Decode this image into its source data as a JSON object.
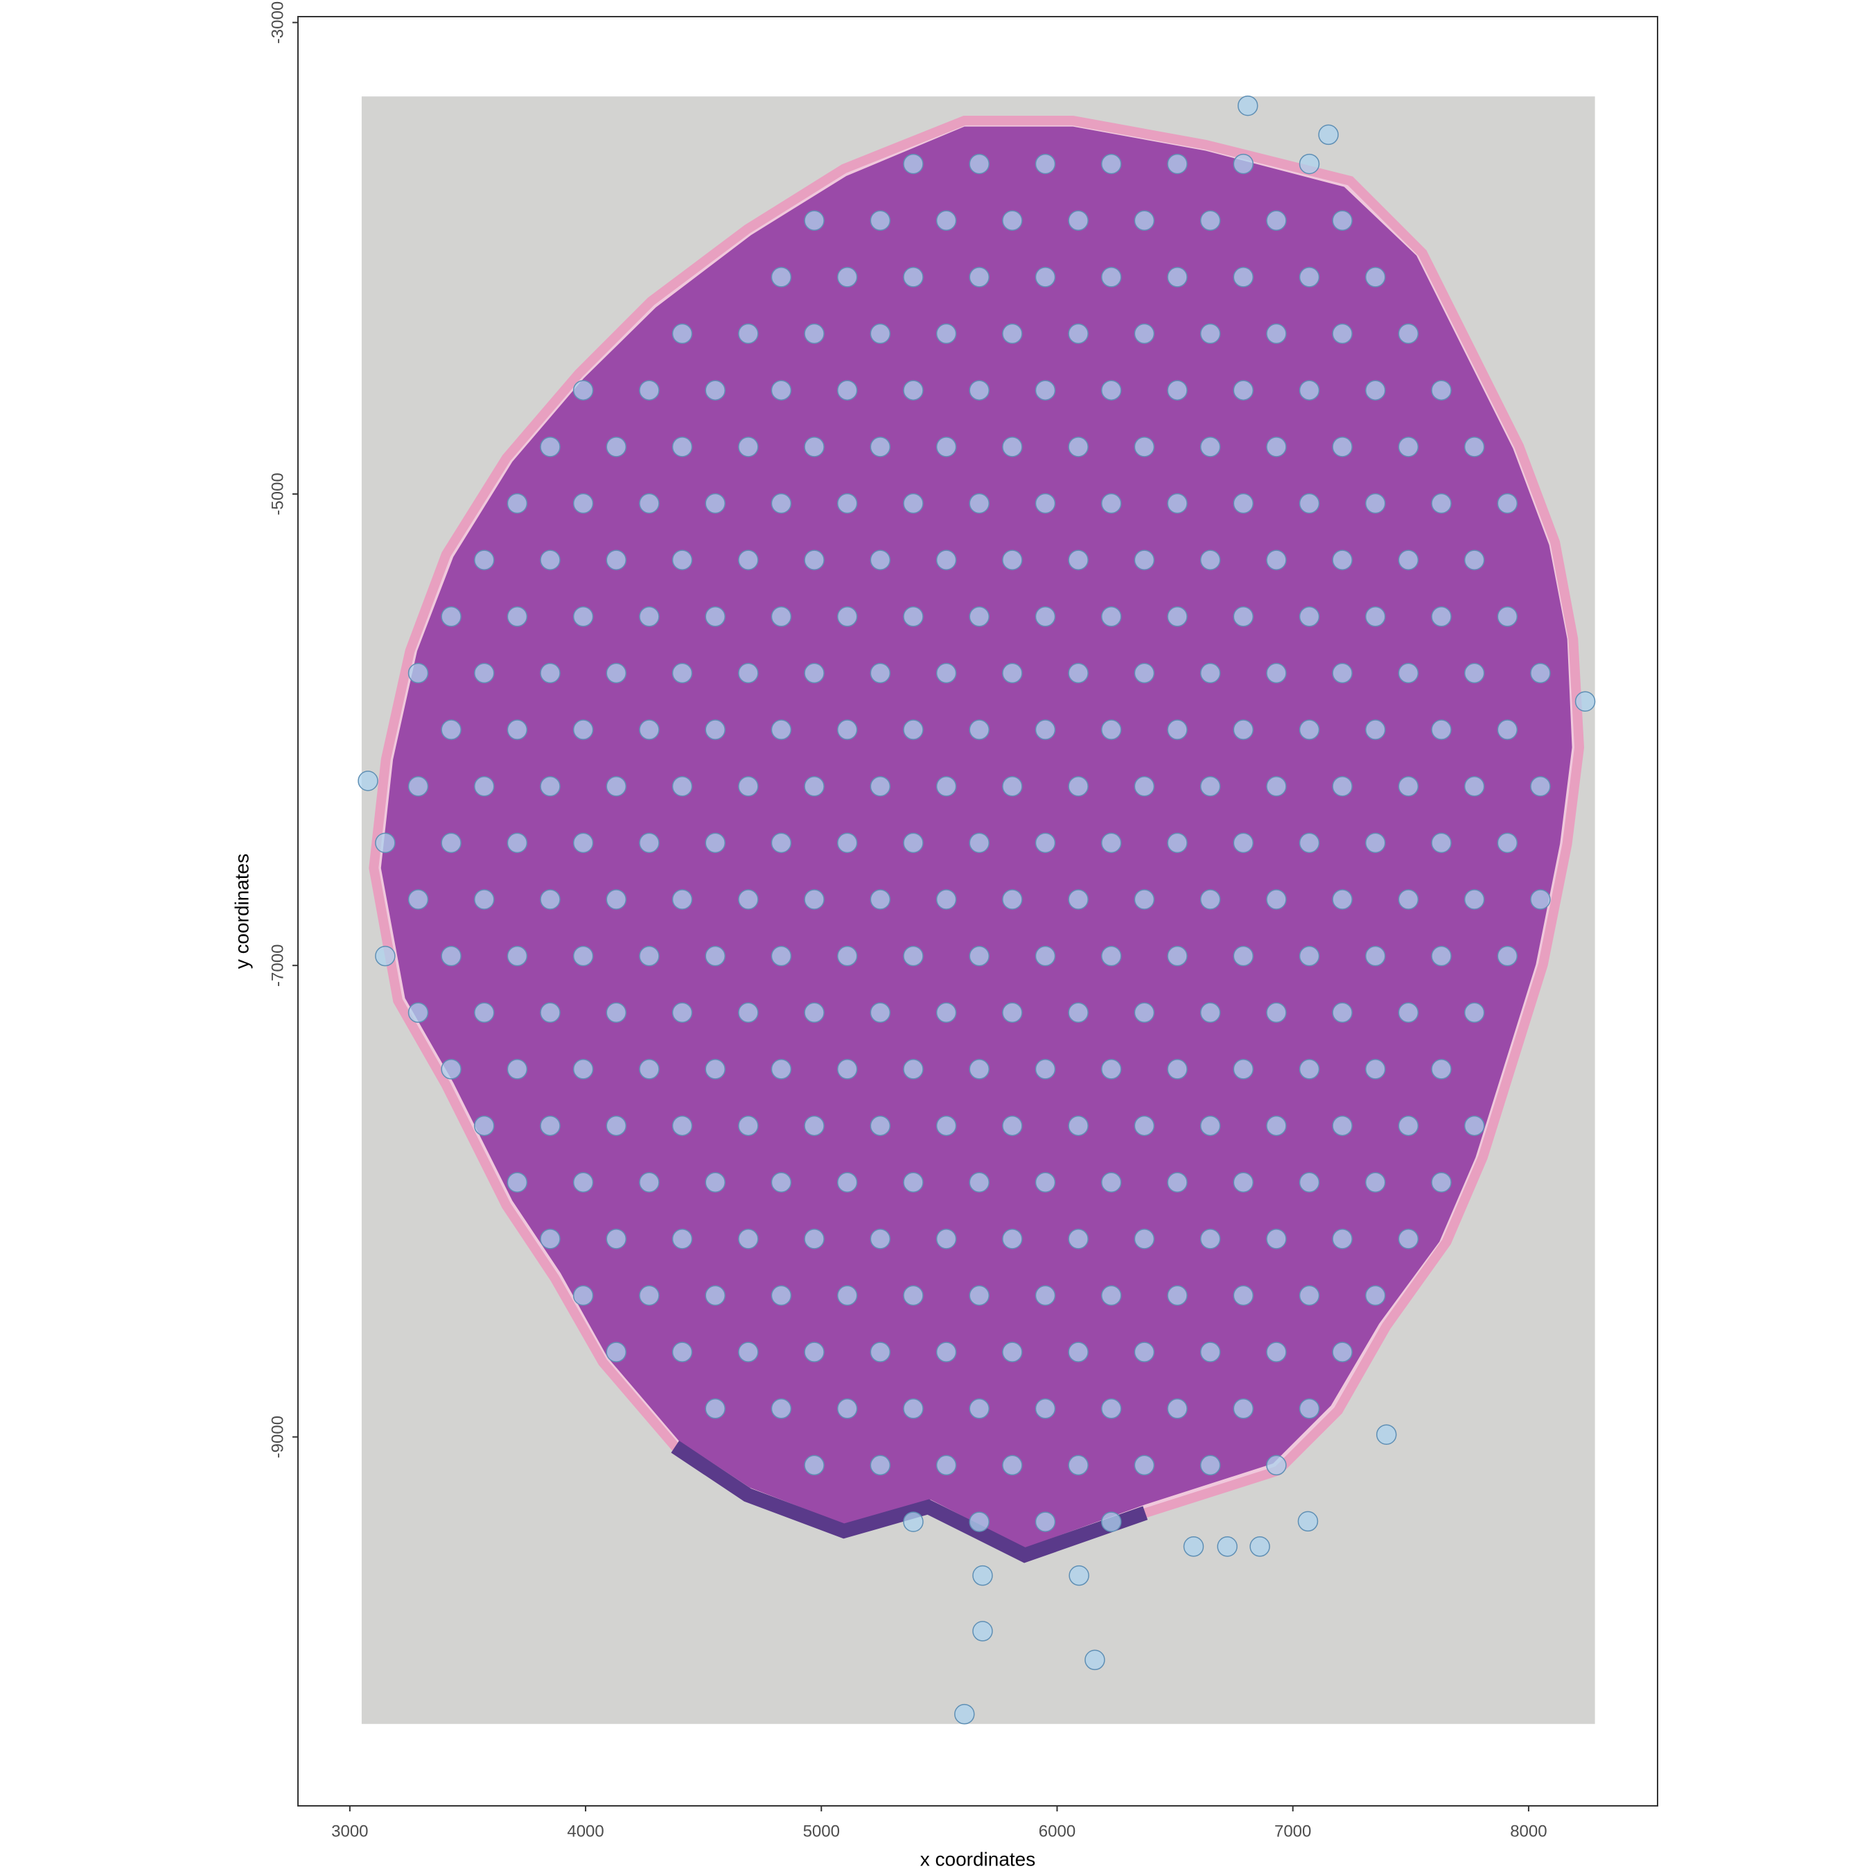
{
  "chart_data": {
    "type": "scatter",
    "x_label": "x coordinates",
    "y_label": "y coordinates",
    "xlim": [
      2780,
      8547
    ],
    "ylim": [
      -10565,
      -2975
    ],
    "xticks": [
      3000,
      4000,
      5000,
      6000,
      7000,
      8000
    ],
    "yticks": [
      -3000,
      -5000,
      -7000,
      -9000
    ],
    "grid": false,
    "color": "#add3ee",
    "edge_color": "#5f8fb4",
    "x": [
      5390,
      5670,
      5950,
      6230,
      6510,
      6790,
      7070,
      4970,
      5250,
      5530,
      5810,
      6090,
      6370,
      6650,
      6930,
      7210,
      4830,
      5110,
      5390,
      5670,
      5950,
      6230,
      6510,
      6790,
      7070,
      7350,
      4410,
      4690,
      4970,
      5250,
      5530,
      5810,
      6090,
      6370,
      6650,
      6930,
      7210,
      7490,
      3990,
      4270,
      4550,
      4830,
      5110,
      5390,
      5670,
      5950,
      6230,
      6510,
      6790,
      7070,
      7350,
      7630,
      3850,
      4130,
      4410,
      4690,
      4970,
      5250,
      5530,
      5810,
      6090,
      6370,
      6650,
      6930,
      7210,
      7490,
      7770,
      3710,
      3990,
      4270,
      4550,
      4830,
      5110,
      5390,
      5670,
      5950,
      6230,
      6510,
      6790,
      7070,
      7350,
      7630,
      7910,
      3570,
      3850,
      4130,
      4410,
      4690,
      4970,
      5250,
      5530,
      5810,
      6090,
      6370,
      6650,
      6930,
      7210,
      7490,
      7770,
      3430,
      3710,
      3990,
      4270,
      4550,
      4830,
      5110,
      5390,
      5670,
      5950,
      6230,
      6510,
      6790,
      7070,
      7350,
      7630,
      7910,
      3290,
      3570,
      3850,
      4130,
      4410,
      4690,
      4970,
      5250,
      5530,
      5810,
      6090,
      6370,
      6650,
      6930,
      7210,
      7490,
      7770,
      8050,
      3430,
      3710,
      3990,
      4270,
      4550,
      4830,
      5110,
      5390,
      5670,
      5950,
      6230,
      6510,
      6790,
      7070,
      7350,
      7630,
      7910,
      3290,
      3570,
      3850,
      4130,
      4410,
      4690,
      4970,
      5250,
      5530,
      5810,
      6090,
      6370,
      6650,
      6930,
      7210,
      7490,
      7770,
      8050,
      3150,
      3430,
      3710,
      3990,
      4270,
      4550,
      4830,
      5110,
      5390,
      5670,
      5950,
      6230,
      6510,
      6790,
      7070,
      7350,
      7630,
      7910,
      3290,
      3570,
      3850,
      4130,
      4410,
      4690,
      4970,
      5250,
      5530,
      5810,
      6090,
      6370,
      6650,
      6930,
      7210,
      7490,
      7770,
      8050,
      3150,
      3430,
      3710,
      3990,
      4270,
      4550,
      4830,
      5110,
      5390,
      5670,
      5950,
      6230,
      6510,
      6790,
      7070,
      7350,
      7630,
      7910,
      3290,
      3570,
      3850,
      4130,
      4410,
      4690,
      4970,
      5250,
      5530,
      5810,
      6090,
      6370,
      6650,
      6930,
      7210,
      7490,
      7770,
      3430,
      3710,
      3990,
      4270,
      4550,
      4830,
      5110,
      5390,
      5670,
      5950,
      6230,
      6510,
      6790,
      7070,
      7350,
      7630,
      3570,
      3850,
      4130,
      4410,
      4690,
      4970,
      5250,
      5530,
      5810,
      6090,
      6370,
      6650,
      6930,
      7210,
      7490,
      7770,
      3710,
      3990,
      4270,
      4550,
      4830,
      5110,
      5390,
      5670,
      5950,
      6230,
      6510,
      6790,
      7070,
      7350,
      7630,
      3850,
      4130,
      4410,
      4690,
      4970,
      5250,
      5530,
      5810,
      6090,
      6370,
      6650,
      6930,
      7210,
      7490,
      3990,
      4270,
      4550,
      4830,
      5110,
      5390,
      5670,
      5950,
      6230,
      6510,
      6790,
      7070,
      7350,
      4130,
      4410,
      4690,
      4970,
      5250,
      5530,
      5810,
      6090,
      6370,
      6650,
      6930,
      7210,
      4550,
      4830,
      5110,
      5390,
      5670,
      5950,
      6230,
      6510,
      6790,
      7070,
      4970,
      5250,
      5530,
      5810,
      6090,
      6370,
      6650,
      6930,
      5390,
      5670,
      5950,
      6230,
      3077,
      5607,
      5684,
      6160,
      6093,
      5684,
      6579,
      6722,
      6860,
      7064,
      7397,
      6809,
      7151,
      8240
    ],
    "values": [
      -3600,
      -3600,
      -3600,
      -3600,
      -3600,
      -3600,
      -3600,
      -3840,
      -3840,
      -3840,
      -3840,
      -3840,
      -3840,
      -3840,
      -3840,
      -3840,
      -4080,
      -4080,
      -4080,
      -4080,
      -4080,
      -4080,
      -4080,
      -4080,
      -4080,
      -4080,
      -4320,
      -4320,
      -4320,
      -4320,
      -4320,
      -4320,
      -4320,
      -4320,
      -4320,
      -4320,
      -4320,
      -4320,
      -4560,
      -4560,
      -4560,
      -4560,
      -4560,
      -4560,
      -4560,
      -4560,
      -4560,
      -4560,
      -4560,
      -4560,
      -4560,
      -4560,
      -4800,
      -4800,
      -4800,
      -4800,
      -4800,
      -4800,
      -4800,
      -4800,
      -4800,
      -4800,
      -4800,
      -4800,
      -4800,
      -4800,
      -4800,
      -5040,
      -5040,
      -5040,
      -5040,
      -5040,
      -5040,
      -5040,
      -5040,
      -5040,
      -5040,
      -5040,
      -5040,
      -5040,
      -5040,
      -5040,
      -5040,
      -5280,
      -5280,
      -5280,
      -5280,
      -5280,
      -5280,
      -5280,
      -5280,
      -5280,
      -5280,
      -5280,
      -5280,
      -5280,
      -5280,
      -5280,
      -5280,
      -5520,
      -5520,
      -5520,
      -5520,
      -5520,
      -5520,
      -5520,
      -5520,
      -5520,
      -5520,
      -5520,
      -5520,
      -5520,
      -5520,
      -5520,
      -5520,
      -5520,
      -5760,
      -5760,
      -5760,
      -5760,
      -5760,
      -5760,
      -5760,
      -5760,
      -5760,
      -5760,
      -5760,
      -5760,
      -5760,
      -5760,
      -5760,
      -5760,
      -5760,
      -5760,
      -6000,
      -6000,
      -6000,
      -6000,
      -6000,
      -6000,
      -6000,
      -6000,
      -6000,
      -6000,
      -6000,
      -6000,
      -6000,
      -6000,
      -6000,
      -6000,
      -6000,
      -6240,
      -6240,
      -6240,
      -6240,
      -6240,
      -6240,
      -6240,
      -6240,
      -6240,
      -6240,
      -6240,
      -6240,
      -6240,
      -6240,
      -6240,
      -6240,
      -6240,
      -6240,
      -6480,
      -6480,
      -6480,
      -6480,
      -6480,
      -6480,
      -6480,
      -6480,
      -6480,
      -6480,
      -6480,
      -6480,
      -6480,
      -6480,
      -6480,
      -6480,
      -6480,
      -6480,
      -6720,
      -6720,
      -6720,
      -6720,
      -6720,
      -6720,
      -6720,
      -6720,
      -6720,
      -6720,
      -6720,
      -6720,
      -6720,
      -6720,
      -6720,
      -6720,
      -6720,
      -6720,
      -6960,
      -6960,
      -6960,
      -6960,
      -6960,
      -6960,
      -6960,
      -6960,
      -6960,
      -6960,
      -6960,
      -6960,
      -6960,
      -6960,
      -6960,
      -6960,
      -6960,
      -6960,
      -7200,
      -7200,
      -7200,
      -7200,
      -7200,
      -7200,
      -7200,
      -7200,
      -7200,
      -7200,
      -7200,
      -7200,
      -7200,
      -7200,
      -7200,
      -7200,
      -7200,
      -7440,
      -7440,
      -7440,
      -7440,
      -7440,
      -7440,
      -7440,
      -7440,
      -7440,
      -7440,
      -7440,
      -7440,
      -7440,
      -7440,
      -7440,
      -7440,
      -7680,
      -7680,
      -7680,
      -7680,
      -7680,
      -7680,
      -7680,
      -7680,
      -7680,
      -7680,
      -7680,
      -7680,
      -7680,
      -7680,
      -7680,
      -7680,
      -7920,
      -7920,
      -7920,
      -7920,
      -7920,
      -7920,
      -7920,
      -7920,
      -7920,
      -7920,
      -7920,
      -7920,
      -7920,
      -7920,
      -7920,
      -8160,
      -8160,
      -8160,
      -8160,
      -8160,
      -8160,
      -8160,
      -8160,
      -8160,
      -8160,
      -8160,
      -8160,
      -8160,
      -8160,
      -8400,
      -8400,
      -8400,
      -8400,
      -8400,
      -8400,
      -8400,
      -8400,
      -8400,
      -8400,
      -8400,
      -8400,
      -8400,
      -8640,
      -8640,
      -8640,
      -8640,
      -8640,
      -8640,
      -8640,
      -8640,
      -8640,
      -8640,
      -8640,
      -8640,
      -8880,
      -8880,
      -8880,
      -8880,
      -8880,
      -8880,
      -8880,
      -8880,
      -8880,
      -8880,
      -9120,
      -9120,
      -9120,
      -9120,
      -9120,
      -9120,
      -9120,
      -9120,
      -9360,
      -9360,
      -9360,
      -9360,
      -6217,
      -10176,
      -9824,
      -9946,
      -9588,
      -9588,
      -9465,
      -9465,
      -9465,
      -9358,
      -8990,
      -3353,
      -3476,
      -5880
    ]
  }
}
